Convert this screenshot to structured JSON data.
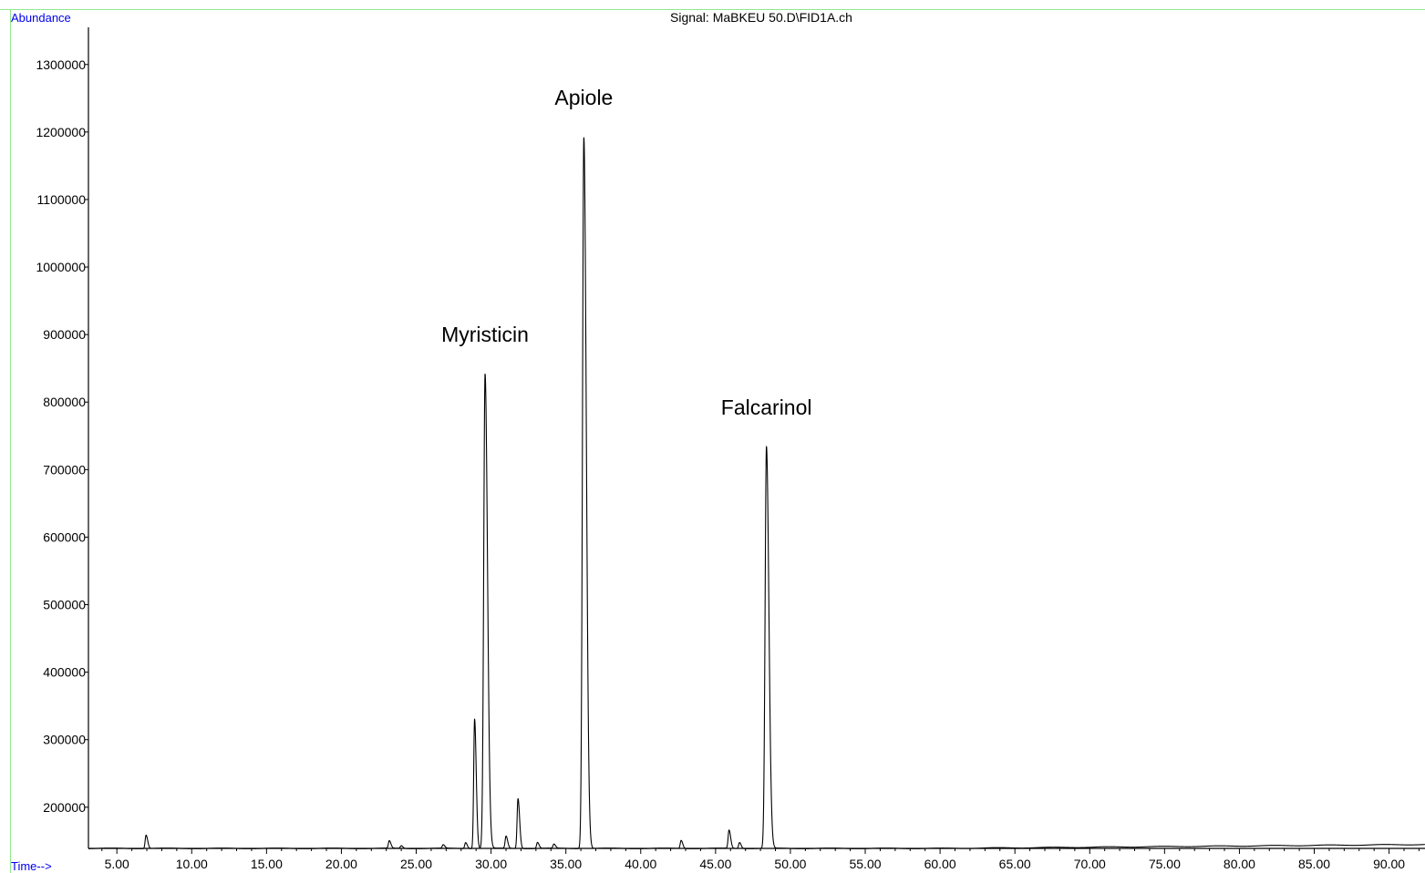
{
  "chart_data": {
    "type": "line",
    "title": "Signal: MaBKEU 50.D\\FID1A.ch",
    "ylabel": "Abundance",
    "xlabel": "Time-->",
    "xlim": [
      3.1,
      92.4
    ],
    "ylim": [
      139000,
      1355000
    ],
    "baseline": 139000,
    "x_ticks": [
      5,
      10,
      15,
      20,
      25,
      30,
      35,
      40,
      45,
      50,
      55,
      60,
      65,
      70,
      75,
      80,
      85,
      90
    ],
    "x_tick_labels": [
      "5.00",
      "10.00",
      "15.00",
      "20.00",
      "25.00",
      "30.00",
      "35.00",
      "40.00",
      "45.00",
      "50.00",
      "55.00",
      "60.00",
      "65.00",
      "70.00",
      "75.00",
      "80.00",
      "85.00",
      "90.00"
    ],
    "y_ticks": [
      200000,
      300000,
      400000,
      500000,
      600000,
      700000,
      800000,
      900000,
      1000000,
      1100000,
      1200000,
      1300000
    ],
    "y_tick_labels": [
      "200000",
      "300000",
      "400000",
      "500000",
      "600000",
      "700000",
      "800000",
      "900000",
      "1000000",
      "1100000",
      "1200000",
      "1300000"
    ],
    "series": [
      {
        "peaks": [
          {
            "x": 6.95,
            "y": 159000
          },
          {
            "x": 23.2,
            "y": 150000
          },
          {
            "x": 24.0,
            "y": 143000
          },
          {
            "x": 26.8,
            "y": 144000
          },
          {
            "x": 28.3,
            "y": 148000
          },
          {
            "x": 28.9,
            "y": 331000
          },
          {
            "x": 29.6,
            "y": 842000
          },
          {
            "x": 31.0,
            "y": 157000
          },
          {
            "x": 31.8,
            "y": 213000
          },
          {
            "x": 33.1,
            "y": 148000
          },
          {
            "x": 34.2,
            "y": 145000
          },
          {
            "x": 36.2,
            "y": 1193000
          },
          {
            "x": 42.7,
            "y": 151000
          },
          {
            "x": 45.9,
            "y": 166000
          },
          {
            "x": 46.6,
            "y": 148000
          },
          {
            "x": 48.4,
            "y": 734000
          }
        ]
      }
    ],
    "annotations": [
      {
        "text": "Myristicin",
        "x": 29.6,
        "y": 842000
      },
      {
        "text": "Apiole",
        "x": 36.2,
        "y": 1193000
      },
      {
        "text": "Falcarinol",
        "x": 48.4,
        "y": 734000
      }
    ],
    "grid": false,
    "legend": "none",
    "colors": {
      "trace": "#000000",
      "axis": "#000000",
      "frame": "#8ee88e",
      "axis_title": "#0000ee"
    }
  }
}
